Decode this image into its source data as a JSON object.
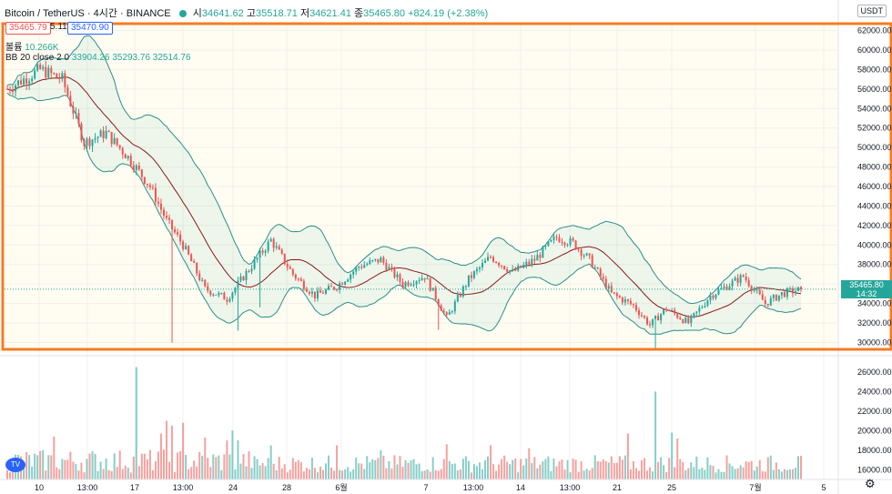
{
  "header": {
    "symbol": "Bitcoin / TetherUS · 4시간 · BINANCE",
    "open_label": "시",
    "open": "34641.62",
    "high_label": "고",
    "high": "35518.71",
    "low_label": "저",
    "low": "34621.41",
    "close_label": "종",
    "close": "35465.80",
    "change": "+824.19 (+2.38%)"
  },
  "trade": {
    "sell": "35465.79",
    "spread": "5.11",
    "buy": "35470.90"
  },
  "indicators": {
    "volume_label": "볼륨",
    "volume_value": "10.266K",
    "bb_label": "BB 20 close 2 0",
    "bb_values": "33904.26  35293.76  32514.76"
  },
  "currency": "USDT",
  "price_tag": {
    "price": "35465.80",
    "countdown": "14:32"
  },
  "colors": {
    "up": "#26a69a",
    "down": "#ef5350",
    "band": "#2a8f8a",
    "basis": "#8b1a1a",
    "highlight": "#f57c22"
  },
  "chart_data": {
    "type": "candlestick",
    "price_ticks": [
      30000,
      32000,
      34000,
      36000,
      38000,
      40000,
      42000,
      44000,
      46000,
      48000,
      50000,
      52000,
      54000,
      56000,
      58000,
      60000,
      62000
    ],
    "price_tick_labels": [
      "30000.00",
      "32000.00",
      "34000.00",
      "36000.00",
      "38000.00",
      "40000.00",
      "42000.00",
      "44000.00",
      "46000.00",
      "48000.00",
      "50000.00",
      "52000.00",
      "54000.00",
      "56000.00",
      "58000.00",
      "60000.00",
      "62000.00"
    ],
    "ylim": [
      29300,
      62700
    ],
    "volume_ticks": [
      16000,
      18000,
      20000,
      22000,
      24000,
      26000
    ],
    "volume_tick_labels": [
      "16000.00",
      "18000.00",
      "20000.00",
      "22000.00",
      "24000.00",
      "26000.00"
    ],
    "volume_lim": [
      15000,
      27200
    ],
    "x_labels": [
      "10",
      "13:00",
      "17",
      "13:00",
      "24",
      "28",
      "6월",
      "7",
      "13:00",
      "14",
      "13:00",
      "21",
      "25",
      "7월",
      "5"
    ],
    "candle_count": 290,
    "anchors": [
      [
        0,
        56000
      ],
      [
        12,
        58000
      ],
      [
        20,
        57000
      ],
      [
        28,
        50500
      ],
      [
        36,
        51500
      ],
      [
        44,
        49000
      ],
      [
        52,
        46000
      ],
      [
        58,
        42500
      ],
      [
        64,
        40000
      ],
      [
        72,
        35500
      ],
      [
        80,
        34500
      ],
      [
        88,
        37500
      ],
      [
        96,
        40500
      ],
      [
        104,
        37000
      ],
      [
        112,
        34800
      ],
      [
        120,
        35800
      ],
      [
        128,
        37800
      ],
      [
        136,
        38500
      ],
      [
        144,
        36000
      ],
      [
        152,
        36800
      ],
      [
        160,
        32500
      ],
      [
        168,
        36500
      ],
      [
        176,
        38800
      ],
      [
        184,
        37200
      ],
      [
        192,
        38500
      ],
      [
        200,
        40800
      ],
      [
        206,
        40200
      ],
      [
        212,
        38500
      ],
      [
        220,
        35000
      ],
      [
        228,
        33800
      ],
      [
        234,
        31800
      ],
      [
        240,
        33500
      ],
      [
        248,
        32000
      ],
      [
        256,
        34800
      ],
      [
        262,
        35800
      ],
      [
        268,
        36800
      ],
      [
        276,
        34000
      ],
      [
        282,
        35000
      ],
      [
        289,
        35465
      ]
    ],
    "current_price": 35465.8
  }
}
